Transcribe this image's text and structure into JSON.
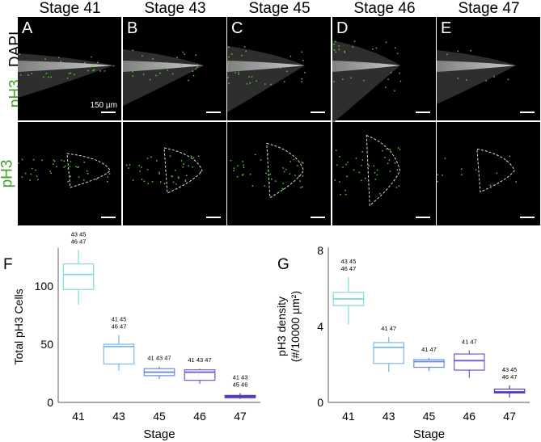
{
  "stages": [
    "Stage 41",
    "Stage 43",
    "Stage 45",
    "Stage 46",
    "Stage 47"
  ],
  "panel_letters": [
    "A",
    "B",
    "C",
    "D",
    "E"
  ],
  "row_labels": {
    "top_green": "pH3",
    "top_white": "DAPI",
    "bottom": "pH3"
  },
  "scale_bar": "150 µm",
  "colors": {
    "pH3": "#3fa02a",
    "boxes": [
      "#7fdcdc",
      "#7ab8e8",
      "#6a8ae8",
      "#6a5ae0",
      "#4a3ac0"
    ]
  },
  "chart_data": [
    {
      "panel": "F",
      "type": "box",
      "title": "",
      "xlabel": "Stage",
      "ylabel": "Total pH3 Cells",
      "categories": [
        "41",
        "43",
        "45",
        "46",
        "47"
      ],
      "yticks": [
        "0",
        "50",
        "100"
      ],
      "ylim": [
        0,
        130
      ],
      "series": [
        {
          "name": "41",
          "min": 84,
          "q1": 97,
          "median": 110,
          "q3": 119,
          "max": 131,
          "sig": [
            "43 45",
            "46 47"
          ]
        },
        {
          "name": "43",
          "min": 27,
          "q1": 33,
          "median": 48,
          "q3": 50,
          "max": 58,
          "sig": [
            "41 45",
            "46 47"
          ]
        },
        {
          "name": "45",
          "min": 20,
          "q1": 23,
          "median": 26,
          "q3": 29,
          "max": 31,
          "sig": [
            "41 43 47"
          ]
        },
        {
          "name": "46",
          "min": 16,
          "q1": 19,
          "median": 26,
          "q3": 28,
          "max": 29,
          "sig": [
            "41 43 47"
          ]
        },
        {
          "name": "47",
          "min": 3,
          "q1": 4,
          "median": 5,
          "q3": 6,
          "max": 8,
          "sig": [
            "41 43",
            "45 46"
          ]
        }
      ]
    },
    {
      "panel": "G",
      "type": "box",
      "title": "",
      "xlabel": "Stage",
      "ylabel": "pH3 density",
      "ylabel2": "(#/10000 µm²)",
      "categories": [
        "41",
        "43",
        "45",
        "46",
        "47"
      ],
      "yticks": [
        "0",
        "4",
        "8"
      ],
      "ylim": [
        0,
        8
      ],
      "series": [
        {
          "name": "41",
          "min": 4.1,
          "q1": 5.1,
          "median": 5.45,
          "q3": 5.8,
          "max": 6.6,
          "sig": [
            "43 45",
            "46 47"
          ]
        },
        {
          "name": "43",
          "min": 1.6,
          "q1": 2.05,
          "median": 2.9,
          "q3": 3.15,
          "max": 3.45,
          "sig": [
            "41 47"
          ]
        },
        {
          "name": "45",
          "min": 1.65,
          "q1": 1.85,
          "median": 2.15,
          "q3": 2.25,
          "max": 2.35,
          "sig": [
            "41 47"
          ]
        },
        {
          "name": "46",
          "min": 1.3,
          "q1": 1.7,
          "median": 2.2,
          "q3": 2.55,
          "max": 2.75,
          "sig": [
            "41 47"
          ]
        },
        {
          "name": "47",
          "min": 0.25,
          "q1": 0.5,
          "median": 0.55,
          "q3": 0.7,
          "max": 0.9,
          "sig": [
            "43 45",
            "46 47"
          ]
        }
      ]
    }
  ]
}
